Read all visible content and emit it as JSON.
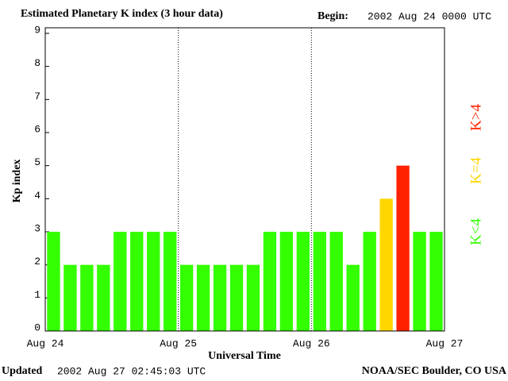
{
  "chart_data": {
    "type": "bar",
    "title": "Estimated Planetary K index (3 hour data)",
    "begin_label": "Begin:",
    "begin_value": "2002 Aug 24 0000 UTC",
    "y_label": "Kp index",
    "x_label": "Universal Time",
    "updated_label": "Updated",
    "updated_value": "2002 Aug 27 02:45:03 UTC",
    "source": "NOAA/SEC Boulder, CO USA",
    "values": [
      3,
      2,
      2,
      2,
      3,
      3,
      3,
      3,
      2,
      2,
      2,
      2,
      2,
      3,
      3,
      3,
      3,
      3,
      2,
      3,
      4,
      5,
      3,
      3
    ],
    "colors": [
      "#33ff00",
      "#33ff00",
      "#33ff00",
      "#33ff00",
      "#33ff00",
      "#33ff00",
      "#33ff00",
      "#33ff00",
      "#33ff00",
      "#33ff00",
      "#33ff00",
      "#33ff00",
      "#33ff00",
      "#33ff00",
      "#33ff00",
      "#33ff00",
      "#33ff00",
      "#33ff00",
      "#33ff00",
      "#33ff00",
      "#ffd700",
      "#ff2200",
      "#33ff00",
      "#33ff00"
    ],
    "xlim": [
      0,
      24
    ],
    "xticks": [
      {
        "value": 0,
        "label": "Aug 24"
      },
      {
        "value": 8,
        "label": "Aug 25"
      },
      {
        "value": 16,
        "label": "Aug 26"
      },
      {
        "value": 24,
        "label": "Aug 27"
      }
    ],
    "ylim": [
      0,
      9
    ],
    "yticks": [
      0,
      1,
      2,
      3,
      4,
      5,
      6,
      7,
      8,
      9
    ],
    "legend": [
      {
        "label": "K<4",
        "color": "#33ff00"
      },
      {
        "label": "K=4",
        "color": "#ffd700"
      },
      {
        "label": "K>4",
        "color": "#ff2200"
      }
    ]
  }
}
